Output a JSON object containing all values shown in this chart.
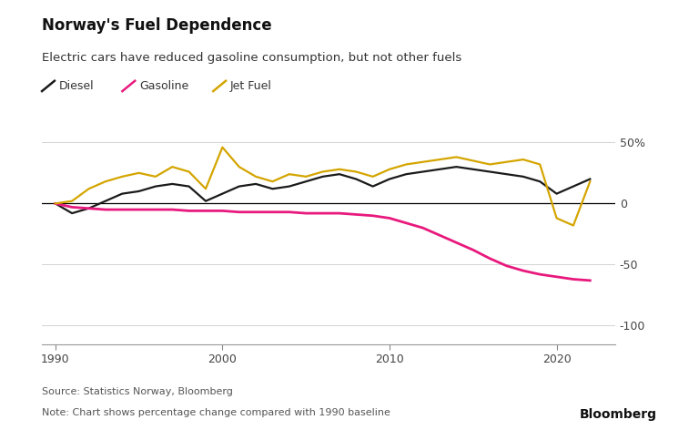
{
  "title": "Norway's Fuel Dependence",
  "subtitle": "Electric cars have reduced gasoline consumption, but not other fuels",
  "source": "Source: Statistics Norway, Bloomberg",
  "note": "Note: Chart shows percentage change compared with 1990 baseline",
  "branding": "Bloomberg",
  "years": [
    1990,
    1991,
    1992,
    1993,
    1994,
    1995,
    1996,
    1997,
    1998,
    1999,
    2000,
    2001,
    2002,
    2003,
    2004,
    2005,
    2006,
    2007,
    2008,
    2009,
    2010,
    2011,
    2012,
    2013,
    2014,
    2015,
    2016,
    2017,
    2018,
    2019,
    2020,
    2021,
    2022
  ],
  "diesel": [
    0,
    -8,
    -4,
    2,
    8,
    10,
    14,
    16,
    14,
    2,
    8,
    14,
    16,
    12,
    14,
    18,
    22,
    24,
    20,
    14,
    20,
    24,
    26,
    28,
    30,
    28,
    26,
    24,
    22,
    18,
    8,
    14,
    20
  ],
  "gasoline": [
    0,
    -3,
    -4,
    -5,
    -5,
    -5,
    -5,
    -5,
    -6,
    -6,
    -6,
    -7,
    -7,
    -7,
    -7,
    -8,
    -8,
    -8,
    -9,
    -10,
    -12,
    -16,
    -20,
    -26,
    -32,
    -38,
    -45,
    -51,
    -55,
    -58,
    -60,
    -62,
    -63
  ],
  "jet_fuel": [
    0,
    2,
    12,
    18,
    22,
    25,
    22,
    30,
    26,
    12,
    46,
    30,
    22,
    18,
    24,
    22,
    26,
    28,
    26,
    22,
    28,
    32,
    34,
    36,
    38,
    35,
    32,
    34,
    36,
    32,
    -12,
    -18,
    18
  ],
  "diesel_color": "#1a1a1a",
  "gasoline_color": "#e8197d",
  "jet_fuel_color": "#d4a500",
  "background_color": "#ffffff",
  "zero_line_color": "#000000",
  "grid_color": "#cccccc",
  "ylim": [
    -115,
    68
  ],
  "yticks": [
    -100,
    -50,
    0,
    50
  ],
  "ytick_labels": [
    "-100",
    "-50",
    "0",
    "50%"
  ],
  "xticks": [
    1990,
    2000,
    2010,
    2020
  ],
  "xlim": [
    1989.2,
    2023.5
  ],
  "title_fontsize": 12,
  "subtitle_fontsize": 9.5,
  "axis_fontsize": 9,
  "legend_fontsize": 9,
  "footer_fontsize": 8,
  "branding_fontsize": 10
}
